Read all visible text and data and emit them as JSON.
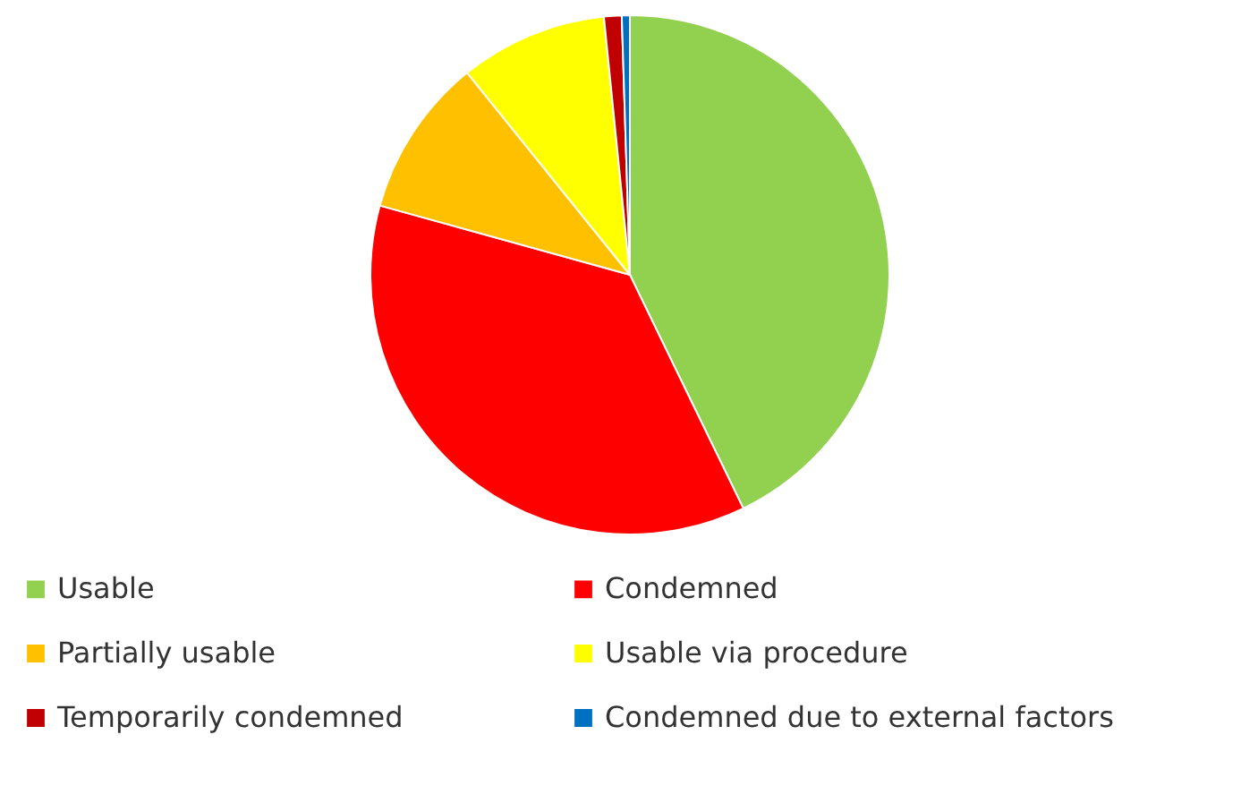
{
  "chart_data": {
    "type": "pie",
    "categories": [
      "Usable",
      "Condemned",
      "Partially usable",
      "Usable via procedure",
      "Temporarily condemned",
      "Condemned due to external factors"
    ],
    "values": [
      42.8,
      36.5,
      9.9,
      9.2,
      1.1,
      0.5
    ],
    "colors": [
      "#92d050",
      "#ff0000",
      "#ffc000",
      "#ffff00",
      "#c00000",
      "#0070c0"
    ],
    "legend": "bottom"
  }
}
